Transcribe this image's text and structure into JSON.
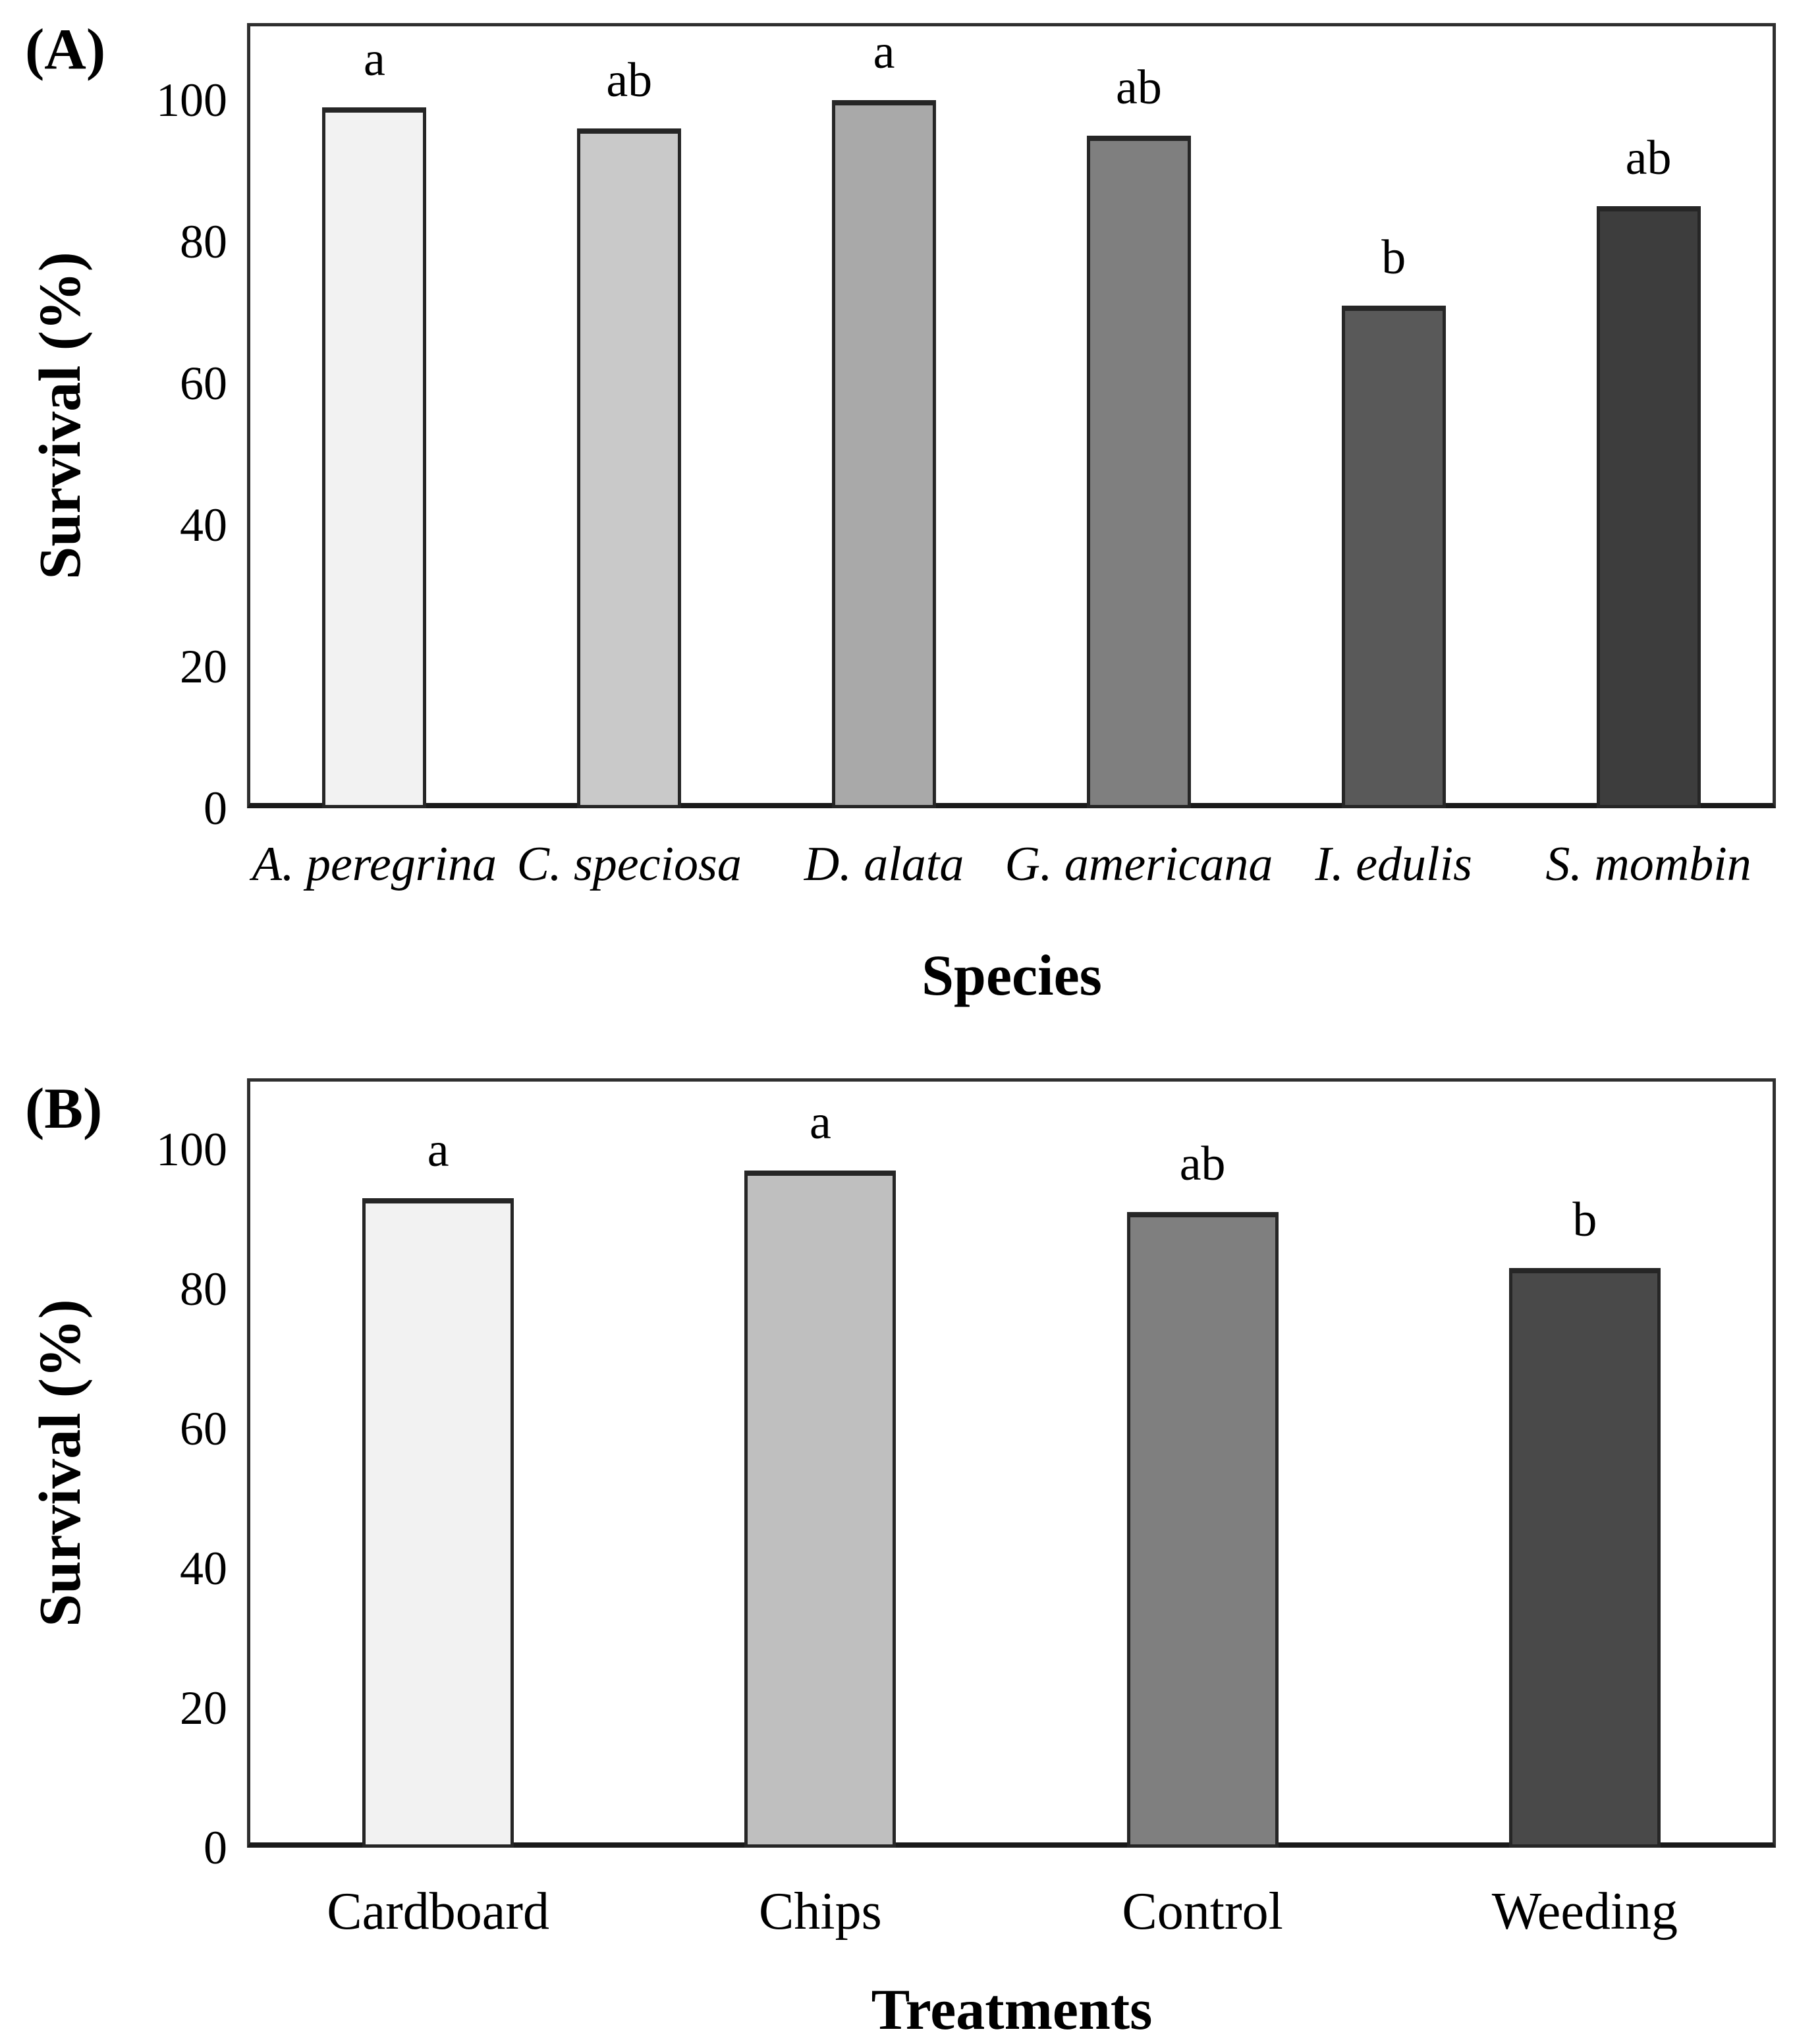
{
  "figure_title": "",
  "style": {
    "background": "#ffffff",
    "axis_color": "#2f2f2f",
    "baseline_color": "#1a1a1a",
    "bar_border_color": "#262626",
    "text_color": "#000000"
  },
  "chart_data": [
    {
      "type": "bar",
      "panel_label": "(A)",
      "title": "",
      "xlabel": "Species",
      "ylabel": "Survival (%)",
      "ylim": [
        0,
        110
      ],
      "yticks": [
        100,
        80,
        60,
        40,
        20,
        0
      ],
      "grid": false,
      "legend": "none",
      "categories": [
        "A. peregrina",
        "C. speciosa",
        "D. alata",
        "G. americana",
        "I. edulis",
        "S. mombin"
      ],
      "categories_italic": true,
      "values": [
        99,
        96,
        100,
        95,
        71,
        85
      ],
      "sig_letters": [
        "a",
        "ab",
        "a",
        "ab",
        "b",
        "ab"
      ],
      "bar_colors": [
        "#f2f2f2",
        "#c9c9c9",
        "#a9a9a9",
        "#7f7f7f",
        "#595959",
        "#3d3d3d"
      ]
    },
    {
      "type": "bar",
      "panel_label": "(B)",
      "title": "",
      "xlabel": "Treatments",
      "ylabel": "Survival (%)",
      "ylim": [
        0,
        110
      ],
      "yticks": [
        100,
        80,
        60,
        40,
        20,
        0
      ],
      "grid": false,
      "legend": "none",
      "categories": [
        "Cardboard",
        "Chips",
        "Control",
        "Weeding"
      ],
      "categories_italic": false,
      "values": [
        93,
        97,
        91,
        83
      ],
      "sig_letters": [
        "a",
        "a",
        "ab",
        "b"
      ],
      "bar_colors": [
        "#f2f2f2",
        "#bfbfbf",
        "#7f7f7f",
        "#494949"
      ]
    }
  ]
}
